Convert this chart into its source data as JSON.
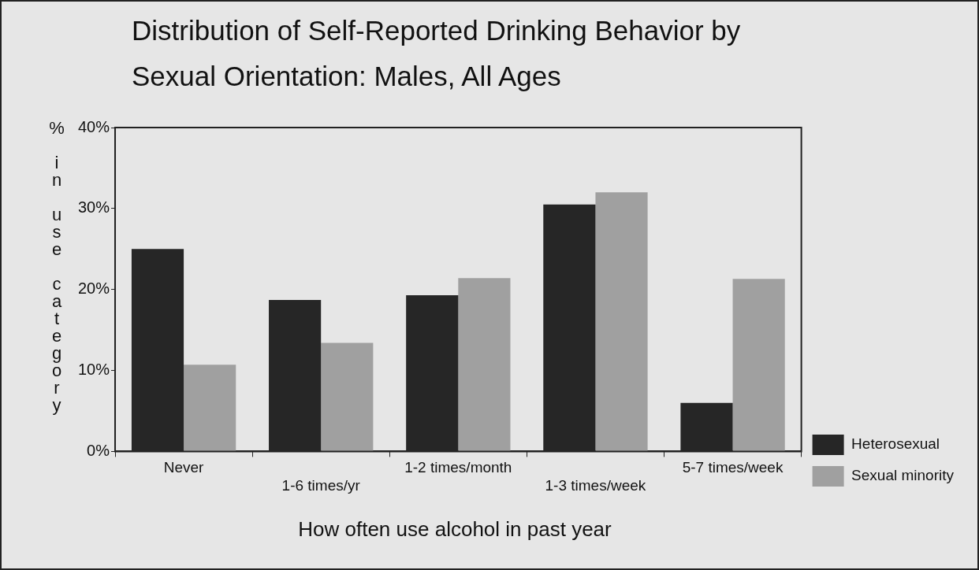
{
  "chart_data": {
    "type": "bar",
    "title": "Distribution of Self-Reported Drinking Behavior by Sexual Orientation:  Males, All Ages",
    "xlabel": "How often use alcohol in past year",
    "ylabel": "% in use category",
    "categories": [
      "Never",
      "1-6 times/yr",
      "1-2 times/month",
      "1-3 times/week",
      "5-7 times/week"
    ],
    "series": [
      {
        "name": "Heterosexual",
        "color": "#262626",
        "values": [
          25,
          18.7,
          19.3,
          30.5,
          6
        ]
      },
      {
        "name": "Sexual minority",
        "color": "#a0a0a0",
        "values": [
          10.7,
          13.4,
          21.4,
          32,
          21.3
        ]
      }
    ],
    "ylim": [
      0,
      40
    ],
    "yticks": [
      {
        "value": 0,
        "label": "0%"
      },
      {
        "value": 10,
        "label": "10%"
      },
      {
        "value": 20,
        "label": "20%"
      },
      {
        "value": 30,
        "label": "30%"
      },
      {
        "value": 40,
        "label": "40%"
      }
    ],
    "grid": false,
    "legend": "bottom right"
  }
}
